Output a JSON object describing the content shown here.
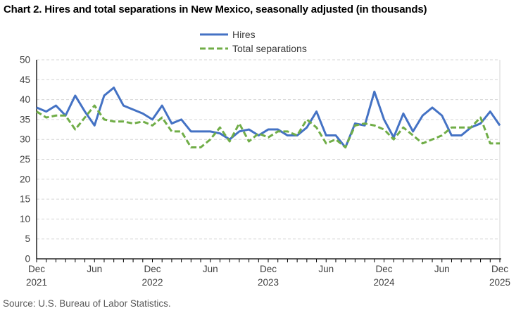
{
  "title": "Chart 2. Hires and total separations in New Mexico, seasonally adjusted (in thousands)",
  "source": "Source: U.S. Bureau of Labor Statistics.",
  "colors": {
    "hires": "#4472C4",
    "separations": "#70AD47",
    "gridline": "#D6D6D6",
    "right_border": "#D6D6D6",
    "axis": "#000000",
    "tick_text": "#404040",
    "title_text": "#000000",
    "source_text": "#595959"
  },
  "chart_data": {
    "type": "line",
    "title": "Chart 2. Hires and total separations in New Mexico, seasonally adjusted (in thousands)",
    "unit": "thousands",
    "grid": "horizontal-dashed",
    "legend_position": "top-center",
    "y_axis": {
      "min": 0,
      "max": 50,
      "step": 5
    },
    "months": [
      "Dec 2021",
      "Jan 2022",
      "Feb 2022",
      "Mar 2022",
      "Apr 2022",
      "May 2022",
      "Jun 2022",
      "Jul 2022",
      "Aug 2022",
      "Sep 2022",
      "Oct 2022",
      "Nov 2022",
      "Dec 2022",
      "Jan 2023",
      "Feb 2023",
      "Mar 2023",
      "Apr 2023",
      "May 2023",
      "Jun 2023",
      "Jul 2023",
      "Aug 2023",
      "Sep 2023",
      "Oct 2023",
      "Nov 2023",
      "Dec 2023",
      "Jan 2024",
      "Feb 2024",
      "Mar 2024",
      "Apr 2024",
      "May 2024",
      "Jun 2024",
      "Jul 2024",
      "Aug 2024",
      "Sep 2024",
      "Oct 2024",
      "Nov 2024",
      "Dec 2024",
      "Jan 2025",
      "Feb 2025",
      "Mar 2025",
      "Apr 2025",
      "May 2025",
      "Jun 2025",
      "Jul 2025",
      "Aug 2025",
      "Sep 2025",
      "Oct 2025",
      "Nov 2025",
      "Dec 2025"
    ],
    "x_major_ticks": [
      {
        "month_index": 0,
        "label": "Dec",
        "year": "2021"
      },
      {
        "month_index": 6,
        "label": "Jun",
        "year": ""
      },
      {
        "month_index": 12,
        "label": "Dec",
        "year": "2022"
      },
      {
        "month_index": 18,
        "label": "Jun",
        "year": ""
      },
      {
        "month_index": 24,
        "label": "Dec",
        "year": "2023"
      },
      {
        "month_index": 30,
        "label": "Jun",
        "year": ""
      },
      {
        "month_index": 36,
        "label": "Dec",
        "year": "2024"
      },
      {
        "month_index": 42,
        "label": "Jun",
        "year": ""
      },
      {
        "month_index": 48,
        "label": "Dec",
        "year": "2025"
      }
    ],
    "series": [
      {
        "name": "Hires",
        "color": "#4472C4",
        "line_style": "solid",
        "values": [
          38,
          37,
          38.5,
          36,
          41,
          37,
          33.5,
          41,
          43,
          38.5,
          37.5,
          36.5,
          35,
          38.5,
          34,
          35,
          32,
          32,
          32,
          31.5,
          30,
          32,
          32.5,
          31,
          32.5,
          32.5,
          31,
          31,
          33,
          37,
          31,
          31,
          28,
          34,
          33.5,
          42,
          35,
          30.5,
          36.5,
          32,
          36,
          38,
          36,
          31,
          31,
          33,
          34,
          37,
          33.5
        ]
      },
      {
        "name": "Total separations",
        "color": "#70AD47",
        "line_style": "dashed",
        "values": [
          37,
          35.5,
          36,
          36,
          32.5,
          35.5,
          38.5,
          35,
          34.5,
          34.5,
          34,
          34.5,
          33.5,
          35.5,
          32,
          32,
          28,
          28,
          30,
          33,
          29.5,
          34,
          29.5,
          31.5,
          30.5,
          32,
          32,
          31,
          35,
          33,
          29,
          30,
          28,
          33.5,
          34,
          33.5,
          32.5,
          30,
          33,
          31,
          29,
          30,
          31,
          33,
          33,
          33,
          35.5,
          29,
          29
        ]
      }
    ]
  }
}
